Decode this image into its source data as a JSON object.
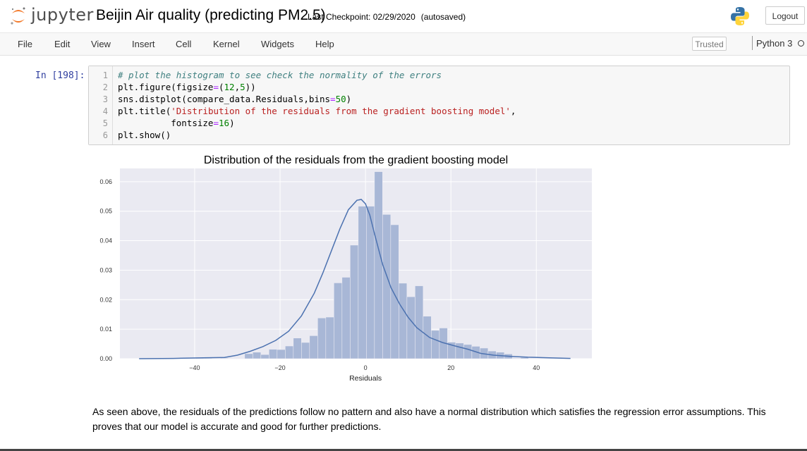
{
  "header": {
    "logo_text": "jupyter",
    "notebook_name": "Beijin Air quality (predicting PM2.5)",
    "checkpoint": "Last Checkpoint: 02/29/2020",
    "autosave_status": "(autosaved)",
    "logout_label": "Logout"
  },
  "menubar": {
    "items": [
      "File",
      "Edit",
      "View",
      "Insert",
      "Cell",
      "Kernel",
      "Widgets",
      "Help"
    ],
    "trusted_label": "Trusted",
    "kernel_name": "Python 3"
  },
  "cell": {
    "prompt": "In [198]:",
    "line_numbers": [
      "1",
      "2",
      "3",
      "4",
      "5",
      "6"
    ],
    "code": [
      {
        "segments": [
          {
            "t": "# plot the histogram to see check the normality of the errors",
            "c": "c-comment"
          }
        ]
      },
      {
        "segments": [
          {
            "t": "plt.figure(figsize",
            "c": ""
          },
          {
            "t": "=",
            "c": "c-op"
          },
          {
            "t": "(",
            "c": ""
          },
          {
            "t": "12",
            "c": "c-num"
          },
          {
            "t": ",",
            "c": ""
          },
          {
            "t": "5",
            "c": "c-num"
          },
          {
            "t": "))",
            "c": ""
          }
        ]
      },
      {
        "segments": [
          {
            "t": "sns.distplot(compare_data.Residuals,bins",
            "c": ""
          },
          {
            "t": "=",
            "c": "c-op"
          },
          {
            "t": "50",
            "c": "c-num"
          },
          {
            "t": ")",
            "c": ""
          }
        ]
      },
      {
        "segments": [
          {
            "t": "plt.title(",
            "c": ""
          },
          {
            "t": "'Distribution of the residuals from the gradient boosting model'",
            "c": "c-str"
          },
          {
            "t": ",",
            "c": ""
          }
        ]
      },
      {
        "segments": [
          {
            "t": "          fontsize",
            "c": ""
          },
          {
            "t": "=",
            "c": "c-op"
          },
          {
            "t": "16",
            "c": "c-num"
          },
          {
            "t": ")",
            "c": ""
          }
        ]
      },
      {
        "segments": [
          {
            "t": "plt.show()",
            "c": ""
          }
        ]
      }
    ]
  },
  "chart_data": {
    "type": "bar",
    "title": "Distribution of the residuals from the gradient boosting model",
    "xlabel": "Residuals",
    "ylabel": "",
    "xlim": [
      -57.5,
      53
    ],
    "ylim": [
      0,
      0.0645
    ],
    "xticks": [
      -40,
      -20,
      0,
      20,
      40
    ],
    "yticks": [
      0.0,
      0.01,
      0.02,
      0.03,
      0.04,
      0.05,
      0.06
    ],
    "ytick_labels": [
      "0.00",
      "0.01",
      "0.02",
      "0.03",
      "0.04",
      "0.05",
      "0.06"
    ],
    "grid": true,
    "background": "#eaeaf2",
    "bar_color": "#a8b7d6",
    "line_color": "#4c72b0",
    "bin_start": -53,
    "bin_width": 1.9,
    "bin_values": [
      0.0002,
      0.0001,
      0.0001,
      0.0001,
      0.0001,
      0.0001,
      0.0001,
      0.0002,
      0.0002,
      0.0001,
      0.0002,
      0.0001,
      0.0001,
      0.0017,
      0.0022,
      0.0014,
      0.0032,
      0.0031,
      0.0043,
      0.007,
      0.0055,
      0.0078,
      0.0138,
      0.0141,
      0.0257,
      0.0276,
      0.0385,
      0.0517,
      0.0517,
      0.0634,
      0.0489,
      0.0454,
      0.0256,
      0.021,
      0.0247,
      0.0144,
      0.0096,
      0.0104,
      0.0056,
      0.0053,
      0.0048,
      0.0042,
      0.0036,
      0.0026,
      0.0022,
      0.0016,
      0.0002,
      0.0004,
      0.0001,
      0.0001,
      0.0001,
      0.0001,
      0.0002
    ],
    "kde": {
      "x": [
        -53,
        -45,
        -38,
        -33,
        -30,
        -27,
        -24,
        -21,
        -18,
        -15,
        -12,
        -10,
        -8,
        -6,
        -4,
        -2,
        -1,
        0,
        1,
        2,
        4,
        6,
        8,
        10,
        12,
        15,
        18,
        21,
        24,
        27,
        30,
        34,
        38,
        43,
        48
      ],
      "y": [
        0.0,
        0.0001,
        0.0003,
        0.0004,
        0.0012,
        0.0025,
        0.0041,
        0.0062,
        0.0093,
        0.0145,
        0.0222,
        0.029,
        0.0365,
        0.044,
        0.0505,
        0.0537,
        0.054,
        0.0525,
        0.0487,
        0.043,
        0.032,
        0.024,
        0.0185,
        0.014,
        0.0105,
        0.0072,
        0.0055,
        0.0043,
        0.0032,
        0.0018,
        0.0012,
        0.0008,
        0.0005,
        0.0003,
        0.0001
      ]
    }
  },
  "markdown": {
    "text": "As seen above, the residuals of the predictions follow no pattern and also have a normal distribution which satisfies the regression error assumptions. This proves that our model is accurate and good for further predictions."
  }
}
